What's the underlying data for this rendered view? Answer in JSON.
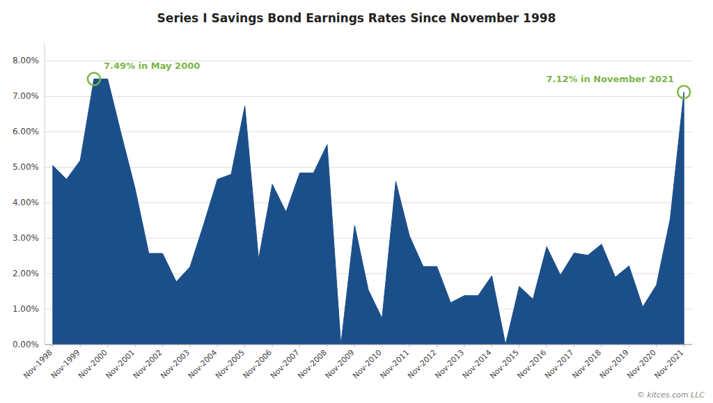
{
  "chart_data": {
    "type": "area",
    "title": "Series I Savings Bond Earnings Rates Since November 1998",
    "color": "#1B4F8A",
    "categories": [
      "Nov-1998",
      null,
      "Nov-1999",
      null,
      "Nov-2000",
      null,
      "Nov-2001",
      null,
      "Nov-2002",
      null,
      "Nov-2003",
      null,
      "Nov-2004",
      null,
      "Nov-2005",
      null,
      "Nov-2006",
      null,
      "Nov-2007",
      null,
      "Nov-2008",
      null,
      "Nov-2009",
      null,
      "Nov-2010",
      null,
      "Nov-2011",
      null,
      "Nov-2012",
      null,
      "Nov-2013",
      null,
      "Nov-2014",
      null,
      "Nov-2015",
      null,
      "Nov-2016",
      null,
      "Nov-2017",
      null,
      "Nov-2018",
      null,
      "Nov-2019",
      null,
      "Nov-2020",
      null,
      "Nov-2021"
    ],
    "values": [
      5.05,
      4.66,
      5.19,
      7.49,
      7.49,
      5.92,
      4.4,
      2.57,
      2.57,
      1.77,
      2.19,
      3.39,
      4.66,
      4.8,
      6.73,
      2.41,
      4.52,
      3.74,
      4.84,
      4.84,
      5.64,
      0.0,
      3.36,
      1.54,
      0.74,
      4.6,
      3.06,
      2.2,
      2.2,
      1.18,
      1.38,
      1.38,
      1.94,
      0.0,
      1.64,
      1.28,
      2.76,
      1.96,
      2.58,
      2.52,
      2.83,
      1.9,
      2.22,
      1.06,
      1.68,
      3.54,
      7.12
    ],
    "ylim": [
      0,
      8.5
    ],
    "yticks": [
      {
        "value": 0,
        "label": "0.00%"
      },
      {
        "value": 1,
        "label": "1.00%"
      },
      {
        "value": 2,
        "label": "2.00%"
      },
      {
        "value": 3,
        "label": "3.00%"
      },
      {
        "value": 4,
        "label": "4.00%"
      },
      {
        "value": 5,
        "label": "5.00%"
      },
      {
        "value": 6,
        "label": "6.00%"
      },
      {
        "value": 7,
        "label": "7.00%"
      },
      {
        "value": 8,
        "label": "8.00%"
      }
    ],
    "grid": true,
    "annotations": [
      {
        "text": "7.49% in May 2000",
        "index": 3,
        "value": 7.49,
        "color": "#7AB648"
      },
      {
        "text": "7.12% in November 2021",
        "index": 46,
        "value": 7.12,
        "color": "#7AB648"
      }
    ],
    "watermark": "© kitces.com LLC"
  }
}
